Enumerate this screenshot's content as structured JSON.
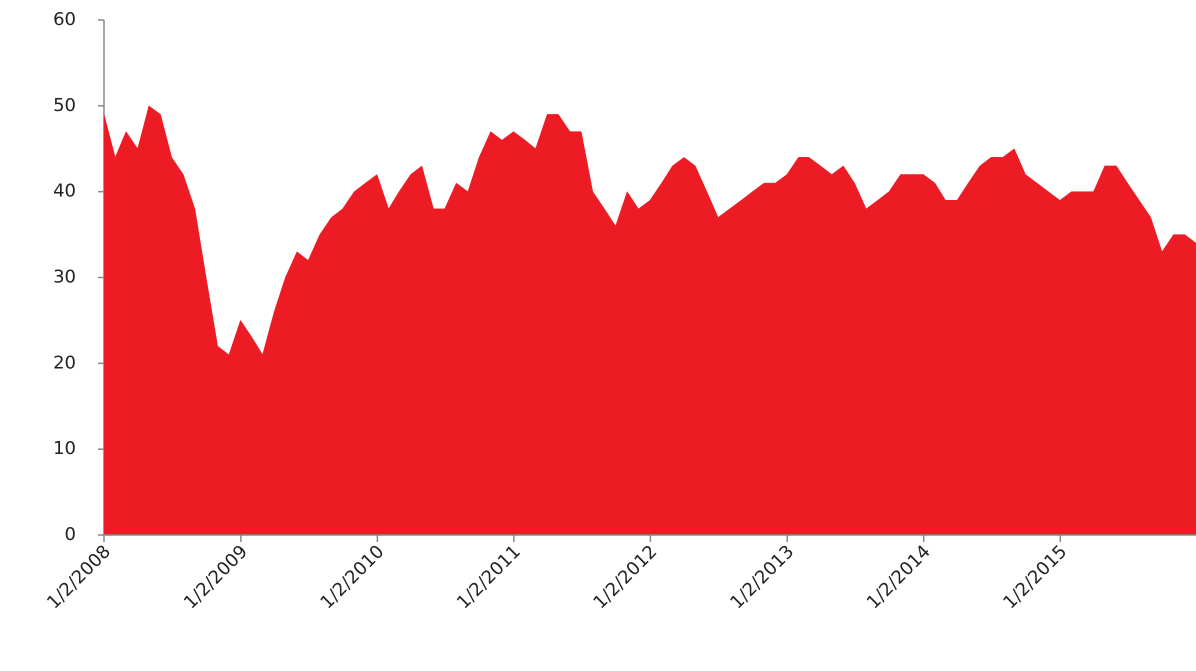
{
  "chart_data": {
    "type": "area",
    "color": "#ed1c24",
    "x": [
      "1/2/2008",
      "2/1/2008",
      "3/1/2008",
      "4/1/2008",
      "5/1/2008",
      "6/1/2008",
      "7/1/2008",
      "8/1/2008",
      "9/1/2008",
      "10/1/2008",
      "11/1/2008",
      "12/1/2008",
      "1/1/2009",
      "2/1/2009",
      "3/1/2009",
      "4/1/2009",
      "5/1/2009",
      "6/1/2009",
      "7/1/2009",
      "8/1/2009",
      "9/1/2009",
      "10/1/2009",
      "11/1/2009",
      "12/1/2009",
      "1/1/2010",
      "2/1/2010",
      "3/1/2010",
      "4/1/2010",
      "5/1/2010",
      "6/1/2010",
      "7/1/2010",
      "8/1/2010",
      "9/1/2010",
      "10/1/2010",
      "11/1/2010",
      "12/1/2010",
      "1/1/2011",
      "2/1/2011",
      "3/1/2011",
      "4/1/2011",
      "5/1/2011",
      "6/1/2011",
      "7/1/2011",
      "8/1/2011",
      "9/1/2011",
      "10/1/2011",
      "11/1/2011",
      "12/1/2011",
      "1/1/2012",
      "2/1/2012",
      "3/1/2012",
      "4/1/2012",
      "5/1/2012",
      "6/1/2012",
      "7/1/2012",
      "8/1/2012",
      "9/1/2012",
      "10/1/2012",
      "11/1/2012",
      "12/1/2012",
      "1/1/2013",
      "2/1/2013",
      "3/1/2013",
      "4/1/2013",
      "5/1/2013",
      "6/1/2013",
      "7/1/2013",
      "8/1/2013",
      "9/1/2013",
      "10/1/2013",
      "11/1/2013",
      "12/1/2013",
      "1/1/2014",
      "2/1/2014",
      "3/1/2014",
      "4/1/2014",
      "5/1/2014",
      "6/1/2014",
      "7/1/2014",
      "8/1/2014",
      "9/1/2014",
      "10/1/2014",
      "11/1/2014",
      "12/1/2014",
      "1/1/2015",
      "2/1/2015",
      "3/1/2015",
      "4/1/2015",
      "5/1/2015",
      "6/1/2015",
      "7/1/2015",
      "8/1/2015",
      "9/1/2015",
      "10/1/2015",
      "11/1/2015",
      "12/1/2015",
      "12/31/2015"
    ],
    "values": [
      49,
      44,
      47,
      45,
      50,
      49,
      44,
      42,
      38,
      30,
      22,
      21,
      25,
      23,
      21,
      26,
      30,
      33,
      32,
      35,
      37,
      38,
      40,
      41,
      42,
      38,
      40,
      42,
      43,
      38,
      38,
      41,
      40,
      44,
      47,
      46,
      47,
      46,
      45,
      49,
      49,
      47,
      47,
      40,
      38,
      36,
      40,
      38,
      39,
      41,
      43,
      44,
      43,
      40,
      37,
      38,
      39,
      40,
      41,
      41,
      42,
      44,
      44,
      43,
      42,
      43,
      41,
      38,
      39,
      40,
      42,
      42,
      42,
      41,
      39,
      39,
      41,
      43,
      44,
      44,
      45,
      42,
      41,
      40,
      39,
      40,
      40,
      40,
      43,
      43,
      41,
      39,
      37,
      33,
      35,
      35,
      34
    ],
    "xlim": [
      "1/2/2008",
      "12/31/2015"
    ],
    "xticks": [
      "1/2/2008",
      "1/2/2009",
      "1/2/2010",
      "1/2/2011",
      "1/2/2012",
      "1/2/2013",
      "1/2/2014",
      "1/2/2015"
    ],
    "ylim": [
      0,
      60
    ],
    "yticks": [
      0,
      10,
      20,
      30,
      40,
      50,
      60
    ],
    "grid": false
  }
}
